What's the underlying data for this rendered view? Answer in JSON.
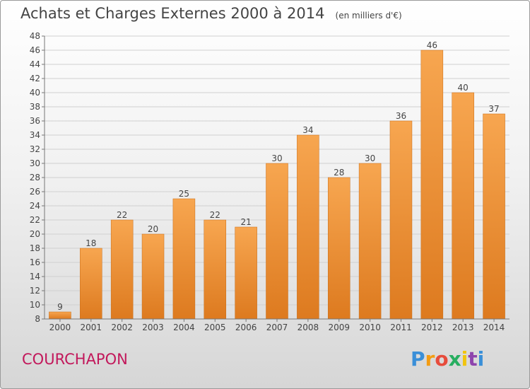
{
  "header": {
    "title": "Achats et Charges Externes 2000 à 2014",
    "unit": "(en milliers d'€)"
  },
  "commune": "COURCHAPON",
  "logo": {
    "text": "Proxiti",
    "colors": [
      "#3a8fd8",
      "#f39c12",
      "#e74c3c",
      "#27ae60",
      "#f1c40f",
      "#8e44ad",
      "#3a8fd8"
    ]
  },
  "chart_data": {
    "type": "bar",
    "categories": [
      "2000",
      "2001",
      "2002",
      "2003",
      "2004",
      "2005",
      "2006",
      "2007",
      "2008",
      "2009",
      "2010",
      "2011",
      "2012",
      "2013",
      "2014"
    ],
    "values": [
      9,
      18,
      22,
      20,
      25,
      22,
      21,
      30,
      34,
      28,
      30,
      36,
      46,
      40,
      37
    ],
    "ylim": [
      8,
      48
    ],
    "yticks": [
      8,
      10,
      12,
      14,
      16,
      18,
      20,
      22,
      24,
      26,
      28,
      30,
      32,
      34,
      36,
      38,
      40,
      42,
      44,
      46,
      48
    ],
    "grid": true,
    "bar_color": "#f0943a",
    "title": "Achats et Charges Externes 2000 à 2014",
    "xlabel": "",
    "ylabel": ""
  }
}
